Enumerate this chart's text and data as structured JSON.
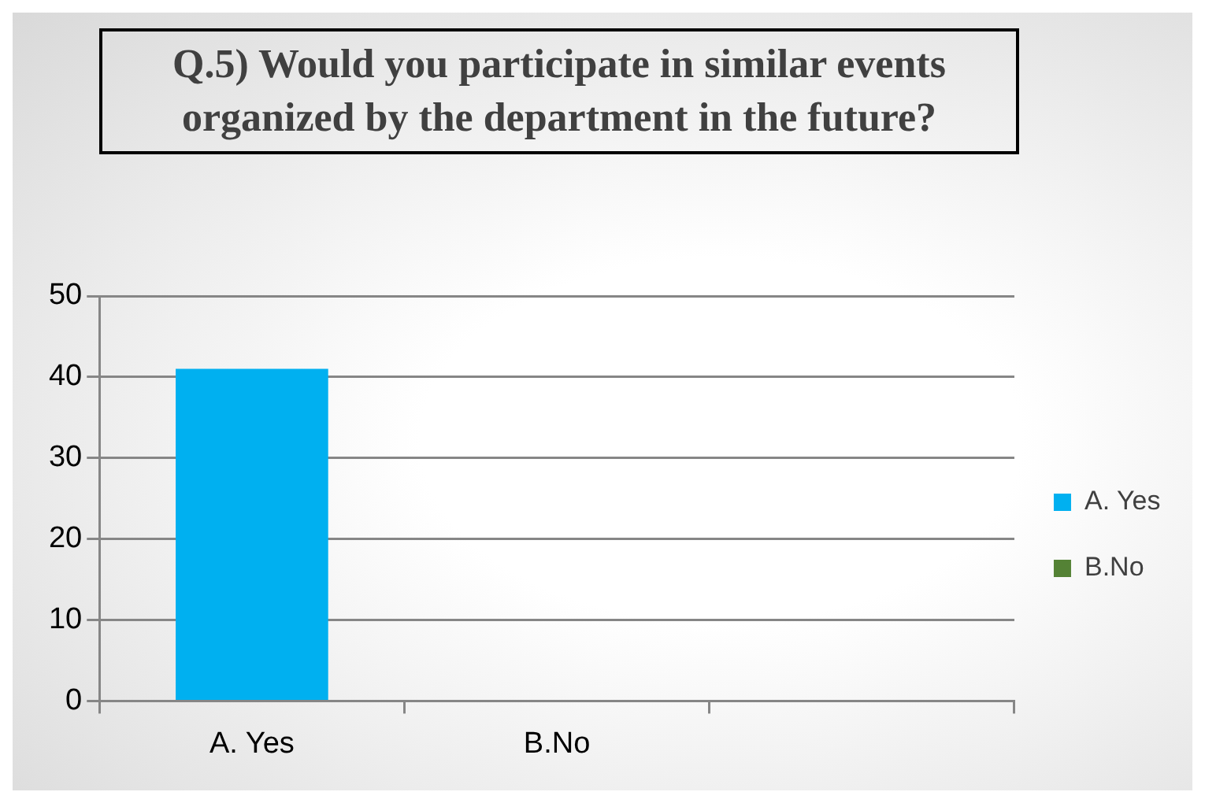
{
  "chart_data": {
    "type": "bar",
    "title": "Q.5) Would you participate in similar events organized by the department in the future?",
    "categories": [
      "A. Yes",
      "B.No",
      null
    ],
    "series": [
      {
        "name": "A. Yes",
        "color": "#00b0f0",
        "values": [
          41,
          null,
          null
        ]
      },
      {
        "name": "B.No",
        "color": "#548235",
        "values": [
          null,
          0,
          null
        ]
      }
    ],
    "ylim": [
      0,
      50
    ],
    "yticks": [
      0,
      10,
      20,
      30,
      40,
      50
    ],
    "grid": "y",
    "legend": "right"
  }
}
